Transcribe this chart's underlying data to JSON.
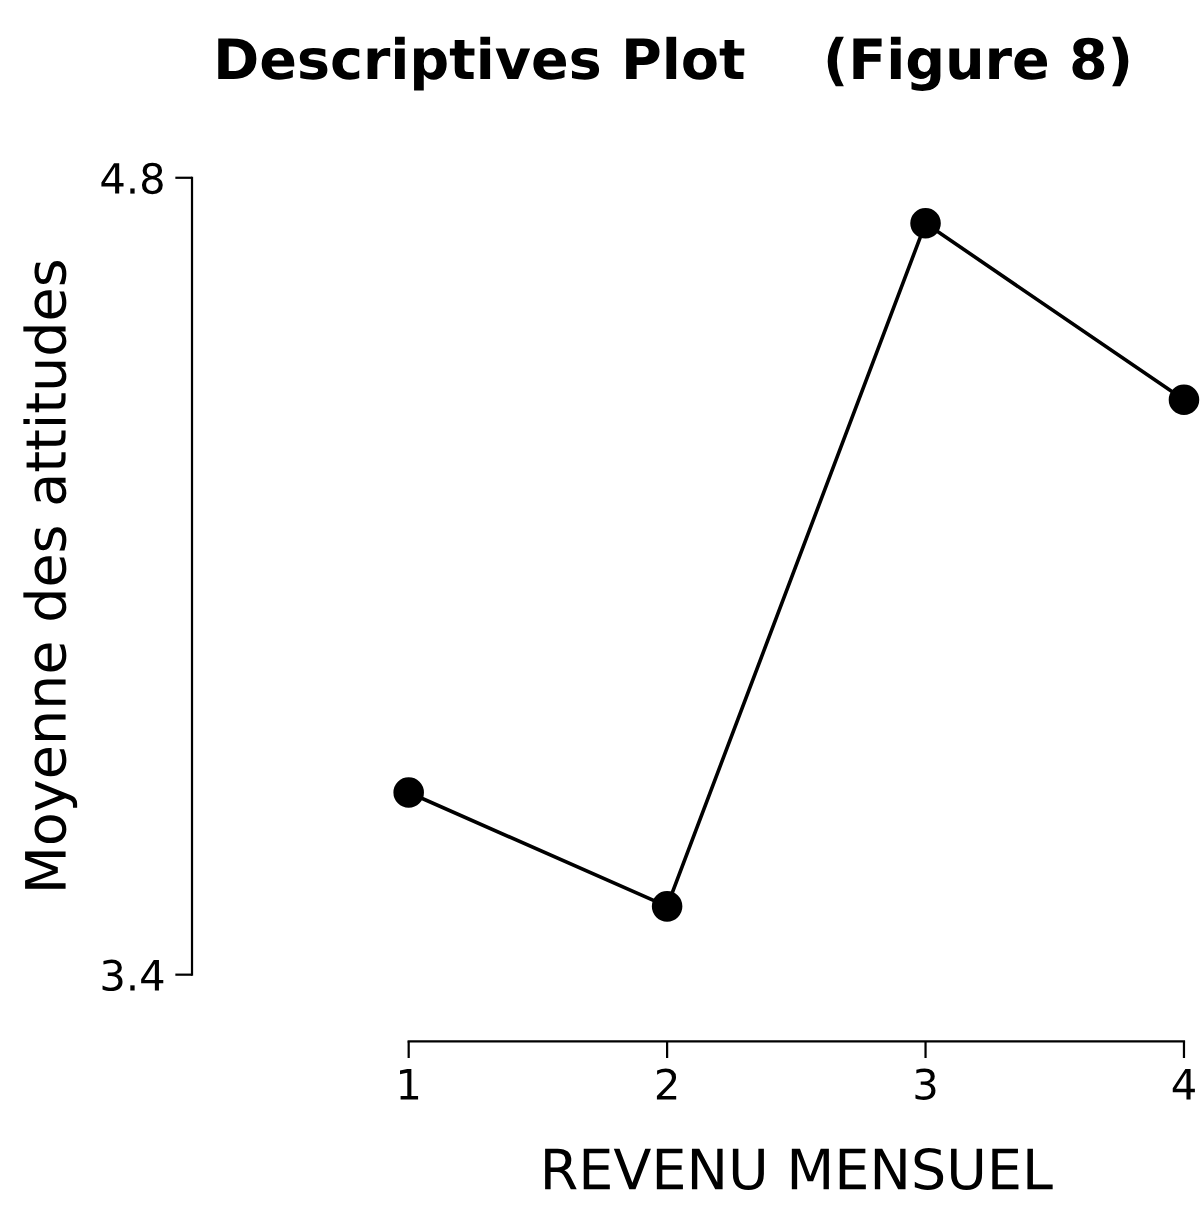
{
  "chart_data": {
    "type": "line",
    "title": "Descriptives Plot    (Figure 8)",
    "xlabel": "REVENU MENSUEL",
    "ylabel": "Moyenne des attitudes",
    "x": [
      1,
      2,
      3,
      4
    ],
    "series": [
      {
        "color": "#000000",
        "values": [
          3.72,
          3.52,
          4.72,
          4.41
        ]
      }
    ],
    "xlim": [
      1,
      4
    ],
    "xticks": [
      1,
      2,
      3,
      4
    ],
    "ylim": [
      3.4,
      4.8
    ],
    "yticks": [
      3.4,
      4.8
    ],
    "marker": "circle",
    "line_style": "solid",
    "grid": false,
    "legend": false
  }
}
